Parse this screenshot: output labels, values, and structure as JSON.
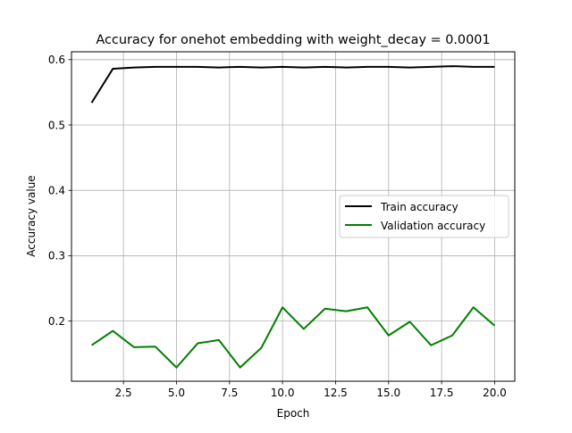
{
  "chart_data": {
    "type": "line",
    "title": "Accuracy for onehot embedding with weight_decay = 0.0001",
    "xlabel": "Epoch",
    "ylabel": "Accuracy value",
    "xlim": [
      0.05,
      20.95
    ],
    "ylim": [
      0.108,
      0.612
    ],
    "xticks": [
      2.5,
      5.0,
      7.5,
      10.0,
      12.5,
      15.0,
      17.5,
      20.0
    ],
    "xtick_labels": [
      "2.5",
      "5.0",
      "7.5",
      "10.0",
      "12.5",
      "15.0",
      "17.5",
      "20.0"
    ],
    "yticks": [
      0.2,
      0.3,
      0.4,
      0.5,
      0.6
    ],
    "ytick_labels": [
      "0.2",
      "0.3",
      "0.4",
      "0.5",
      "0.6"
    ],
    "grid": true,
    "legend_position": "center-right",
    "x": [
      1,
      2,
      3,
      4,
      5,
      6,
      7,
      8,
      9,
      10,
      11,
      12,
      13,
      14,
      15,
      16,
      17,
      18,
      19,
      20
    ],
    "series": [
      {
        "name": "Train accuracy",
        "color": "#000000",
        "values": [
          0.534,
          0.586,
          0.588,
          0.589,
          0.589,
          0.589,
          0.588,
          0.589,
          0.588,
          0.589,
          0.588,
          0.589,
          0.588,
          0.589,
          0.589,
          0.588,
          0.589,
          0.59,
          0.589,
          0.589
        ]
      },
      {
        "name": "Validation accuracy",
        "color": "#008000",
        "values": [
          0.163,
          0.185,
          0.16,
          0.161,
          0.129,
          0.166,
          0.171,
          0.129,
          0.159,
          0.221,
          0.188,
          0.219,
          0.215,
          0.221,
          0.178,
          0.199,
          0.163,
          0.178,
          0.221,
          0.193
        ]
      }
    ]
  }
}
